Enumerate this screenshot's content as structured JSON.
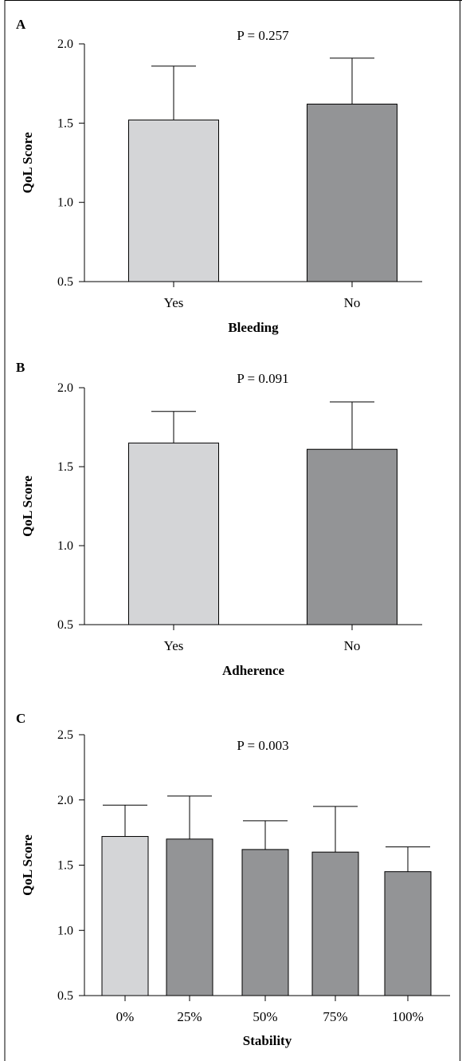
{
  "chart_data": [
    {
      "type": "bar",
      "panel": "A",
      "annotation": "P = 0.257",
      "xlabel": "Bleeding",
      "ylabel": "QoL Score",
      "ylim": [
        0.5,
        2.0
      ],
      "yticks": [
        "0.5",
        "1.0",
        "1.5",
        "2.0"
      ],
      "categories": [
        "Yes",
        "No"
      ],
      "values": [
        1.52,
        1.62
      ],
      "error_upper": [
        1.86,
        1.91
      ],
      "colors": [
        "#d4d5d7",
        "#939496"
      ],
      "grid": false
    },
    {
      "type": "bar",
      "panel": "B",
      "annotation": "P = 0.091",
      "xlabel": "Adherence",
      "ylabel": "QoL Score",
      "ylim": [
        0.5,
        2.0
      ],
      "yticks": [
        "0.5",
        "1.0",
        "1.5",
        "2.0"
      ],
      "categories": [
        "Yes",
        "No"
      ],
      "values": [
        1.65,
        1.61
      ],
      "error_upper": [
        1.85,
        1.91
      ],
      "colors": [
        "#d4d5d7",
        "#939496"
      ],
      "grid": false
    },
    {
      "type": "bar",
      "panel": "C",
      "annotation": "P = 0.003",
      "xlabel": "Stability",
      "ylabel": "QoL Score",
      "ylim": [
        0.5,
        2.5
      ],
      "yticks": [
        "0.5",
        "1.0",
        "1.5",
        "2.0",
        "2.5"
      ],
      "categories": [
        "0%",
        "25%",
        "50%",
        "75%",
        "100%"
      ],
      "values": [
        1.72,
        1.7,
        1.62,
        1.6,
        1.45
      ],
      "error_upper": [
        1.96,
        2.03,
        1.84,
        1.95,
        1.64
      ],
      "colors": [
        "#d4d5d7",
        "#939496",
        "#939496",
        "#939496",
        "#939496"
      ],
      "grid": false
    }
  ]
}
